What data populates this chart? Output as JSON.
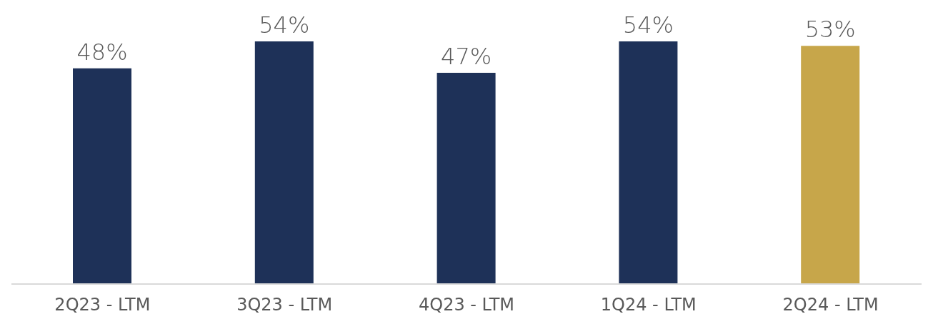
{
  "chart_data": {
    "type": "bar",
    "categories": [
      "2Q23 - LTM",
      "3Q23 - LTM",
      "4Q23 - LTM",
      "1Q24 - LTM",
      "2Q24 - LTM"
    ],
    "values": [
      48,
      54,
      47,
      54,
      53
    ],
    "value_labels": [
      "48%",
      "54%",
      "47%",
      "54%",
      "53%"
    ],
    "colors": [
      "#1e3158",
      "#1e3158",
      "#1e3158",
      "#1e3158",
      "#c7a64a"
    ]
  }
}
